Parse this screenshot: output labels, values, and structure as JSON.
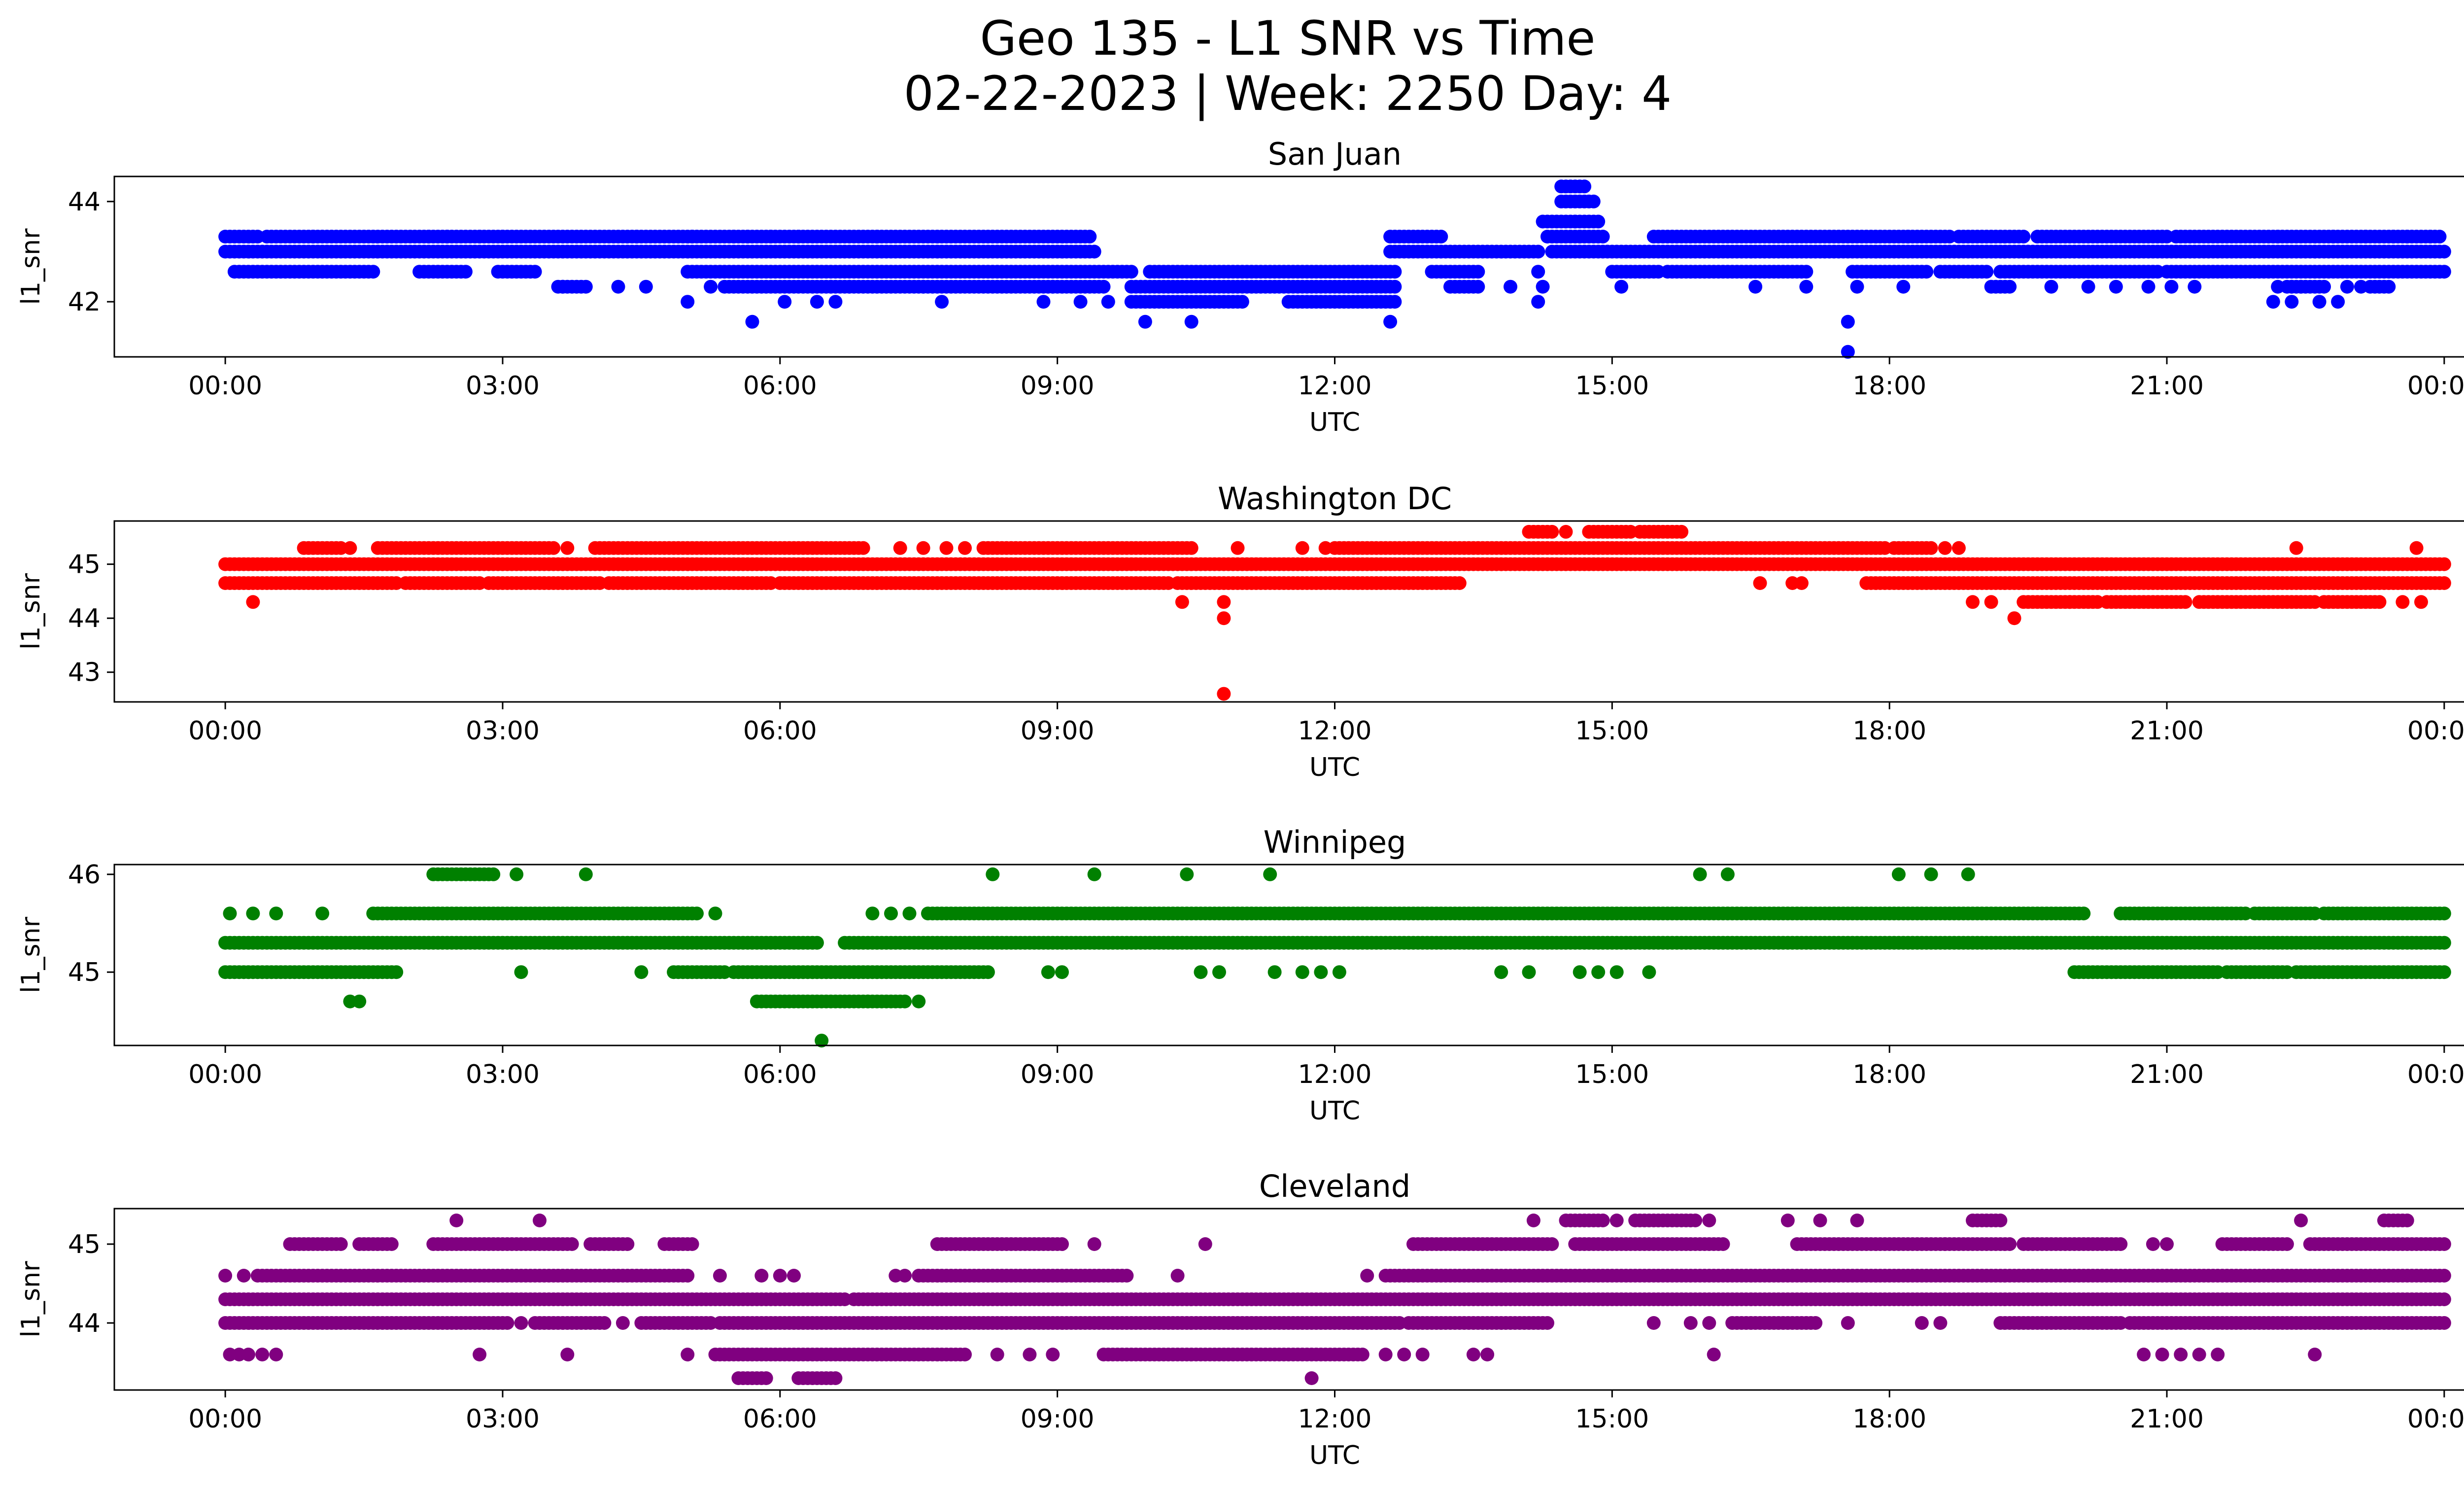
{
  "figure": {
    "title_line1": "Geo 135 - L1 SNR vs Time",
    "title_line2": "02-22-2023 | Week: 2250 Day: 4"
  },
  "chart_data": [
    {
      "type": "scatter",
      "title": "San Juan",
      "xlabel": "UTC",
      "ylabel": "l1_snr",
      "color": "#0000ff",
      "xlim": [
        "00:00",
        "24:00"
      ],
      "xticks": [
        "00:00",
        "03:00",
        "06:00",
        "09:00",
        "12:00",
        "15:00",
        "18:00",
        "21:00",
        "00:00"
      ],
      "ylim": [
        40.9,
        44.5
      ],
      "yticks": [
        42,
        44
      ],
      "levels": [
        {
          "y": 43.3,
          "ranges": [
            [
              0.0,
              0.35
            ],
            [
              0.45,
              9.1
            ],
            [
              9.15,
              9.35
            ],
            [
              12.6,
              13.15
            ],
            [
              14.3,
              14.9
            ],
            [
              15.45,
              17.5
            ],
            [
              17.55,
              18.65
            ],
            [
              18.75,
              19.45
            ],
            [
              19.6,
              21.0
            ],
            [
              21.1,
              23.95
            ]
          ],
          "scatter": [
            0.95,
            2.2,
            2.4,
            2.75,
            3.0,
            4.45,
            5.05,
            5.5,
            5.65,
            5.9,
            6.2,
            7.05,
            14.65,
            18.2,
            22.2,
            22.8,
            23.15,
            23.45,
            23.6,
            23.85
          ]
        },
        {
          "y": 43.0,
          "ranges": [
            [
              0.0,
              9.4
            ],
            [
              12.6,
              14.2
            ],
            [
              14.35,
              24.0
            ]
          ],
          "scatter": []
        },
        {
          "y": 42.6,
          "ranges": [
            [
              0.1,
              1.6
            ],
            [
              2.1,
              2.6
            ],
            [
              2.95,
              3.35
            ],
            [
              5.0,
              9.8
            ],
            [
              10.0,
              12.65
            ],
            [
              13.05,
              13.55
            ],
            [
              15.0,
              15.5
            ],
            [
              15.6,
              17.1
            ],
            [
              17.6,
              18.4
            ],
            [
              18.55,
              19.05
            ],
            [
              19.2,
              20.9
            ],
            [
              21.0,
              24.0
            ]
          ],
          "scatter": [
            12.2,
            12.4,
            14.2
          ]
        },
        {
          "y": 42.3,
          "ranges": [
            [
              3.6,
              3.9
            ],
            [
              5.4,
              9.5
            ],
            [
              9.8,
              12.65
            ],
            [
              13.25,
              13.55
            ],
            [
              19.1,
              19.3
            ],
            [
              22.3,
              22.7
            ],
            [
              23.2,
              23.4
            ]
          ],
          "scatter": [
            3.65,
            4.25,
            4.55,
            5.25,
            6.55,
            6.75,
            7.55,
            8.95,
            13.9,
            14.25,
            15.1,
            16.55,
            17.1,
            17.65,
            18.15,
            19.75,
            20.15,
            20.45,
            20.8,
            21.05,
            21.3,
            22.2,
            22.35,
            22.45,
            22.95,
            23.1
          ]
        },
        {
          "y": 42.0,
          "ranges": [
            [
              9.8,
              11.0
            ],
            [
              11.5,
              12.65
            ]
          ],
          "scatter": [
            5.0,
            6.05,
            6.4,
            6.6,
            7.75,
            8.85,
            9.25,
            9.55,
            14.2,
            22.15,
            22.35,
            22.65,
            22.85
          ]
        },
        {
          "y": 41.6,
          "ranges": [],
          "scatter": [
            5.7,
            9.95,
            10.45,
            12.6,
            17.55
          ]
        },
        {
          "y": 41.0,
          "ranges": [],
          "scatter": [
            17.55
          ]
        },
        {
          "y": 43.6,
          "ranges": [
            [
              14.25,
              14.85
            ]
          ],
          "scatter": [
            14.6
          ]
        },
        {
          "y": 44.0,
          "ranges": [
            [
              14.45,
              14.8
            ]
          ],
          "scatter": []
        },
        {
          "y": 44.3,
          "ranges": [
            [
              14.45,
              14.7
            ]
          ],
          "scatter": []
        }
      ]
    },
    {
      "type": "scatter",
      "title": "Washington DC",
      "xlabel": "UTC",
      "ylabel": "l1_snr",
      "color": "#ff0000",
      "xlim": [
        "00:00",
        "24:00"
      ],
      "xticks": [
        "00:00",
        "03:00",
        "06:00",
        "09:00",
        "12:00",
        "15:00",
        "18:00",
        "21:00",
        "00:00"
      ],
      "ylim": [
        42.45,
        45.8
      ],
      "yticks": [
        43,
        44,
        45
      ],
      "levels": [
        {
          "y": 45.0,
          "ranges": [
            [
              0.0,
              24.0
            ]
          ],
          "scatter": []
        },
        {
          "y": 44.65,
          "ranges": [
            [
              0.0,
              1.85
            ],
            [
              1.95,
              2.75
            ],
            [
              2.85,
              4.05
            ],
            [
              4.15,
              5.9
            ],
            [
              6.0,
              10.2
            ],
            [
              10.3,
              12.9
            ],
            [
              12.95,
              13.35
            ],
            [
              17.75,
              24.0
            ]
          ],
          "scatter": [
            16.6,
            16.95,
            17.05
          ]
        },
        {
          "y": 45.3,
          "ranges": [
            [
              0.85,
              1.25
            ],
            [
              1.65,
              3.55
            ],
            [
              4.0,
              6.9
            ],
            [
              8.2,
              10.45
            ],
            [
              12.0,
              17.95
            ],
            [
              18.05,
              18.45
            ]
          ],
          "scatter": [
            1.35,
            3.7,
            7.3,
            7.55,
            7.8,
            8.0,
            10.95,
            11.65,
            11.9,
            18.6,
            18.75,
            22.4,
            23.7
          ]
        },
        {
          "y": 45.6,
          "ranges": [
            [
              14.1,
              14.35
            ],
            [
              14.75,
              15.2
            ],
            [
              15.35,
              15.75
            ]
          ],
          "scatter": [
            14.5,
            15.3
          ]
        },
        {
          "y": 44.3,
          "ranges": [
            [
              19.45,
              20.25
            ],
            [
              20.35,
              21.2
            ],
            [
              21.35,
              22.6
            ],
            [
              22.7,
              23.3
            ]
          ],
          "scatter": [
            0.3,
            10.35,
            10.8,
            18.9,
            19.1,
            19.95,
            23.55,
            23.75
          ]
        },
        {
          "y": 44.0,
          "ranges": [],
          "scatter": [
            10.8,
            19.35
          ]
        },
        {
          "y": 42.6,
          "ranges": [],
          "scatter": [
            10.8
          ]
        }
      ]
    },
    {
      "type": "scatter",
      "title": "Winnipeg",
      "xlabel": "UTC",
      "ylabel": "l1_snr",
      "color": "#008000",
      "xlim": [
        "00:00",
        "24:00"
      ],
      "xticks": [
        "00:00",
        "03:00",
        "06:00",
        "09:00",
        "12:00",
        "15:00",
        "18:00",
        "21:00",
        "00:00"
      ],
      "ylim": [
        44.25,
        46.1
      ],
      "yticks": [
        45,
        46
      ],
      "levels": [
        {
          "y": 45.3,
          "ranges": [
            [
              0.0,
              6.4
            ],
            [
              6.7,
              24.0
            ]
          ],
          "scatter": []
        },
        {
          "y": 45.6,
          "ranges": [
            [
              1.6,
              5.1
            ],
            [
              7.6,
              20.1
            ],
            [
              20.5,
              21.85
            ],
            [
              21.95,
              22.6
            ],
            [
              22.7,
              24.0
            ]
          ],
          "scatter": [
            0.05,
            0.3,
            0.55,
            1.05,
            5.3,
            7.0,
            7.2,
            7.4
          ]
        },
        {
          "y": 45.0,
          "ranges": [
            [
              0.0,
              1.85
            ],
            [
              4.85,
              5.4
            ],
            [
              5.5,
              8.25
            ],
            [
              20.0,
              21.55
            ],
            [
              21.65,
              22.3
            ],
            [
              22.4,
              24.0
            ]
          ],
          "scatter": [
            3.2,
            4.5,
            8.9,
            9.05,
            10.55,
            10.75,
            11.35,
            11.65,
            11.85,
            12.05,
            13.8,
            14.1,
            14.65,
            14.85,
            15.05,
            15.4,
            21.9,
            22.15
          ]
        },
        {
          "y": 46.0,
          "ranges": [
            [
              2.25,
              2.9
            ]
          ],
          "scatter": [
            3.15,
            3.9,
            8.3,
            9.4,
            10.4,
            11.3,
            15.95,
            16.25,
            18.1,
            18.45,
            18.85
          ]
        },
        {
          "y": 44.7,
          "ranges": [
            [
              5.75,
              6.95
            ],
            [
              6.95,
              7.35
            ]
          ],
          "scatter": [
            1.35,
            1.45,
            7.5
          ]
        },
        {
          "y": 44.3,
          "ranges": [],
          "scatter": [
            6.45
          ]
        }
      ]
    },
    {
      "type": "scatter",
      "title": "Cleveland",
      "xlabel": "UTC",
      "ylabel": "l1_snr",
      "color": "#800080",
      "xlim": [
        "00:00",
        "24:00"
      ],
      "xticks": [
        "00:00",
        "03:00",
        "06:00",
        "09:00",
        "12:00",
        "15:00",
        "18:00",
        "21:00",
        "00:00"
      ],
      "ylim": [
        43.15,
        45.45
      ],
      "yticks": [
        44,
        45
      ],
      "levels": [
        {
          "y": 44.3,
          "ranges": [
            [
              0.0,
              5.0
            ],
            [
              5.05,
              6.7
            ],
            [
              6.8,
              24.0
            ]
          ],
          "scatter": []
        },
        {
          "y": 44.6,
          "ranges": [
            [
              0.35,
              5.0
            ],
            [
              7.5,
              9.75
            ],
            [
              12.55,
              24.0
            ]
          ],
          "scatter": [
            0.0,
            0.2,
            5.35,
            5.8,
            6.0,
            6.15,
            7.25,
            7.35,
            10.3,
            12.35
          ]
        },
        {
          "y": 44.0,
          "ranges": [
            [
              0.0,
              3.05
            ],
            [
              3.35,
              4.1
            ],
            [
              4.5,
              5.25
            ],
            [
              5.35,
              12.7
            ],
            [
              12.8,
              14.3
            ],
            [
              16.3,
              17.2
            ],
            [
              19.2,
              20.5
            ],
            [
              20.6,
              24.0
            ]
          ],
          "scatter": [
            3.2,
            4.3,
            15.45,
            15.85,
            16.05,
            17.55,
            18.35,
            18.55
          ]
        },
        {
          "y": 43.6,
          "ranges": [
            [
              5.3,
              8.0
            ],
            [
              9.5,
              12.3
            ]
          ],
          "scatter": [
            0.05,
            0.15,
            0.25,
            0.4,
            0.55,
            2.75,
            3.7,
            5.0,
            8.35,
            8.7,
            8.95,
            12.55,
            12.75,
            12.95,
            13.5,
            13.65,
            16.1,
            20.75,
            20.95,
            21.15,
            21.35,
            21.55,
            22.6
          ]
        },
        {
          "y": 45.0,
          "ranges": [
            [
              0.7,
              1.25
            ],
            [
              1.45,
              1.8
            ],
            [
              2.25,
              3.75
            ],
            [
              3.95,
              4.35
            ],
            [
              4.75,
              5.05
            ],
            [
              7.7,
              9.05
            ],
            [
              12.85,
              14.35
            ],
            [
              14.6,
              16.2
            ],
            [
              17.0,
              19.3
            ],
            [
              19.45,
              20.5
            ],
            [
              21.6,
              22.3
            ],
            [
              22.55,
              24.0
            ]
          ],
          "scatter": [
            9.4,
            10.6,
            18.6,
            20.85,
            21.0
          ]
        },
        {
          "y": 45.3,
          "ranges": [
            [
              14.5,
              14.9
            ],
            [
              15.25,
              15.9
            ],
            [
              18.9,
              19.2
            ],
            [
              23.35,
              23.6
            ]
          ],
          "scatter": [
            2.5,
            3.4,
            14.15,
            15.05,
            16.05,
            16.9,
            17.25,
            17.65,
            22.45
          ]
        },
        {
          "y": 43.3,
          "ranges": [
            [
              5.55,
              5.85
            ],
            [
              6.2,
              6.6
            ]
          ],
          "scatter": [
            11.75
          ]
        }
      ]
    }
  ]
}
